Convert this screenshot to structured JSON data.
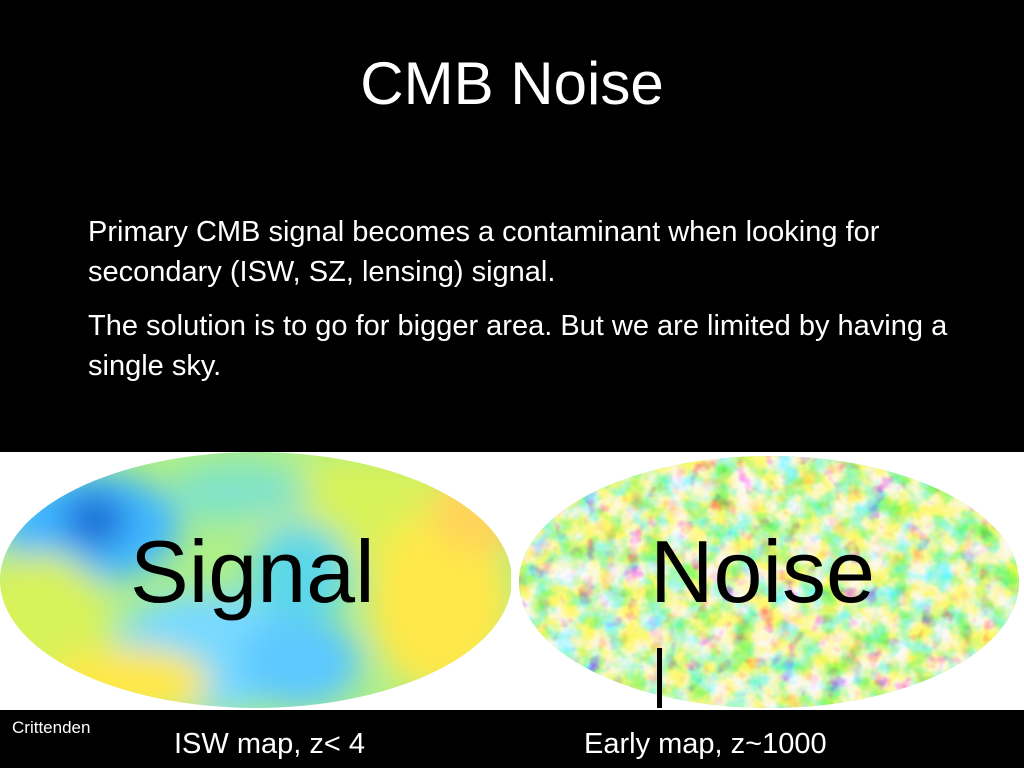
{
  "slide": {
    "title": "CMB Noise",
    "paragraphs": [
      "Primary CMB signal becomes a contaminant when looking for secondary (ISW, SZ, lensing) signal.",
      "The solution is to go for bigger area.  But we are limited by having a single sky."
    ],
    "credit": "Crittenden"
  },
  "maps": {
    "left": {
      "label": "Signal",
      "caption": "ISW map, z< 4",
      "palette": [
        "#1f6fd6",
        "#3fb6ff",
        "#7fe3c8",
        "#d8f25a",
        "#ffe84a"
      ]
    },
    "right": {
      "label": "Noise",
      "caption": "Early map, z~1000",
      "palette": [
        "#1a3cff",
        "#2ea8ff",
        "#7cf0a0",
        "#f4f23a",
        "#ff6a1a",
        "#e01010"
      ]
    }
  }
}
